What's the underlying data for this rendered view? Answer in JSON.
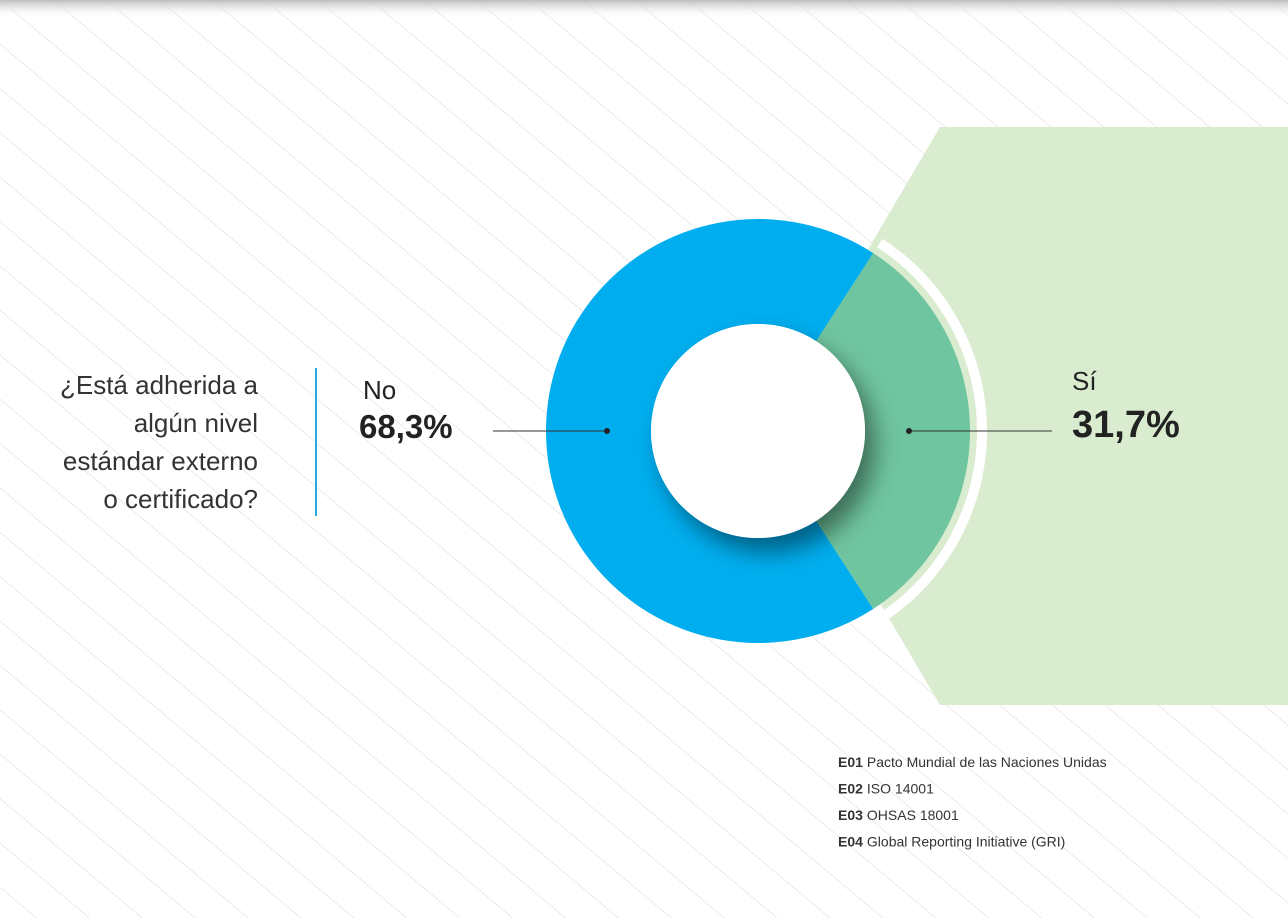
{
  "chart_data": {
    "type": "pie",
    "donut": true,
    "title_lines": [
      "¿Está adherida a",
      "algún nivel",
      "estándar externo",
      "o certificado?"
    ],
    "categories": [
      "No",
      "Sí"
    ],
    "values": [
      68.3,
      31.7
    ],
    "value_labels": [
      "68,3%",
      "31,7%"
    ],
    "colors": [
      "#00aeef",
      "#6fc59f"
    ],
    "notes": [
      {
        "code": "E01",
        "text": "Pacto Mundial de las Naciones Unidas"
      },
      {
        "code": "E02",
        "text": "ISO 14001"
      },
      {
        "code": "E03",
        "text": "OHSAS 18001"
      },
      {
        "code": "E04",
        "text": "Global Reporting Initiative (GRI)"
      }
    ]
  }
}
